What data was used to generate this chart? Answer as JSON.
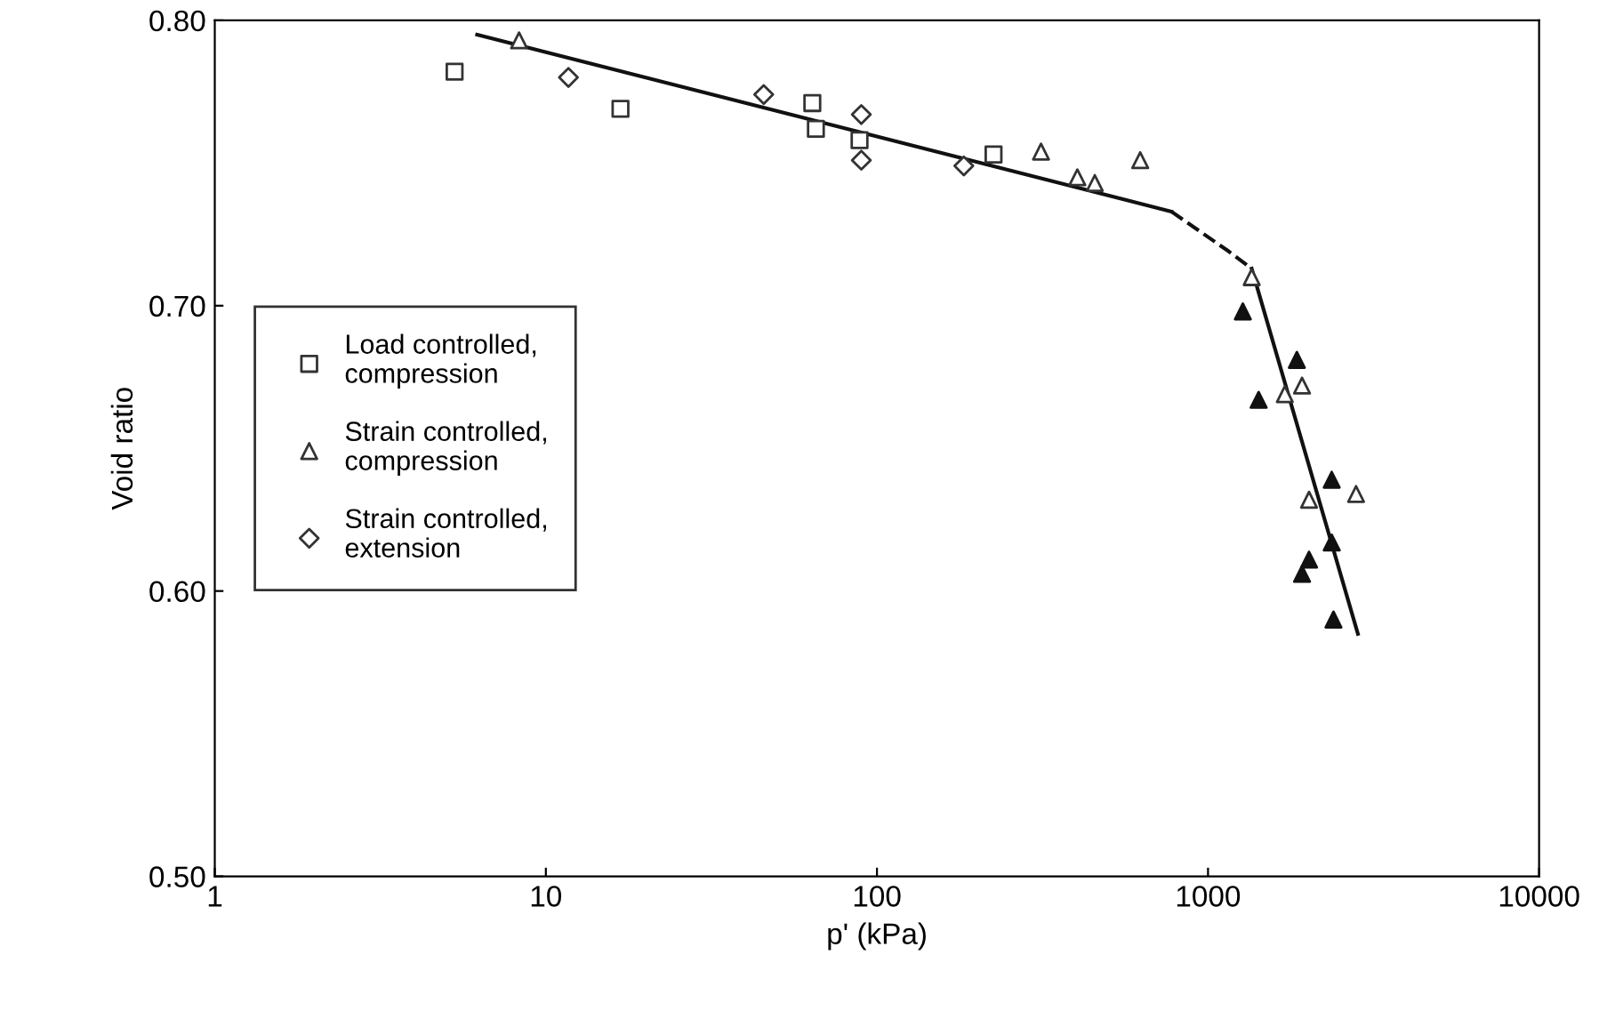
{
  "chart_data": {
    "type": "scatter",
    "xlabel": "p' (kPa)",
    "ylabel": "Void ratio",
    "log": "x",
    "xlim": [
      1,
      10000
    ],
    "xticks": [
      1,
      10,
      100,
      1000,
      10000
    ],
    "ylim": [
      0.5,
      0.8
    ],
    "yticks": [
      {
        "value": 0.5,
        "label": "0.50"
      },
      {
        "value": 0.6,
        "label": "0.60"
      },
      {
        "value": 0.7,
        "label": "0.70"
      },
      {
        "value": 0.8,
        "label": "0.80"
      }
    ],
    "grid": false,
    "legend": "left",
    "series": [
      {
        "name": "Load controlled,\ncompression",
        "marker": "square",
        "color": "#333333",
        "x": [
          5.3,
          16.8,
          63.8,
          65.4,
          88.6,
          225
        ],
        "values": [
          0.782,
          0.769,
          0.771,
          0.762,
          0.758,
          0.753
        ]
      },
      {
        "name": "Strain controlled,\ncompression",
        "marker": "triangle",
        "color": "#333333",
        "x": [
          8.3,
          313,
          403,
          455,
          624,
          1355,
          1923,
          1706,
          2019,
          2800
        ],
        "values": [
          0.793,
          0.754,
          0.745,
          0.743,
          0.751,
          0.71,
          0.672,
          0.669,
          0.632,
          0.634
        ]
      },
      {
        "name": "Strain controlled,\nextension",
        "marker": "diamond",
        "color": "#333333",
        "x": [
          11.7,
          45.5,
          89.7,
          89.7,
          183
        ],
        "values": [
          0.78,
          0.774,
          0.767,
          0.751,
          0.749
        ]
      },
      {
        "marker": "triangle",
        "color": "#111111",
        "x": [
          1274,
          1855,
          1422,
          2364,
          2364,
          2019,
          1923,
          2393
        ],
        "values": [
          0.698,
          0.681,
          0.667,
          0.639,
          0.617,
          0.611,
          0.606,
          0.59
        ]
      },
      {
        "type": "line",
        "color": "#111111",
        "line_style": "solid",
        "x": [
          6.2,
          775
        ],
        "values": [
          0.795,
          0.733
        ]
      },
      {
        "type": "line",
        "color": "#111111",
        "line_style": "dashed",
        "x": [
          775,
          1156,
          1355
        ],
        "values": [
          0.733,
          0.719,
          0.713
        ]
      },
      {
        "type": "line",
        "color": "#111111",
        "line_style": "solid",
        "x": [
          1355,
          2836
        ],
        "values": [
          0.713,
          0.585
        ]
      }
    ]
  }
}
